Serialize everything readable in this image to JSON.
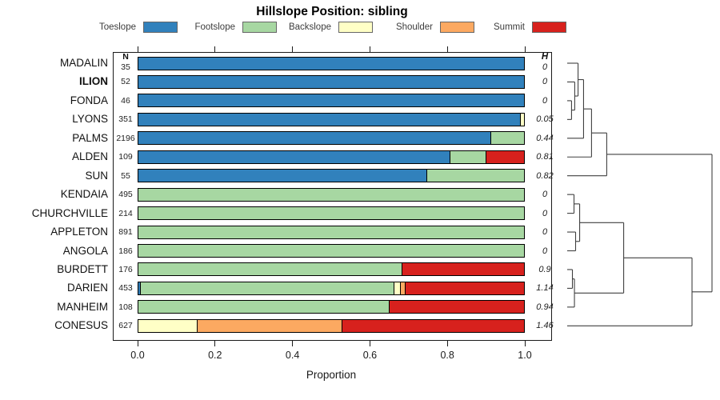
{
  "title": "Hillslope Position: sibling",
  "columns": {
    "n_header": "N",
    "h_header": "H"
  },
  "axis": {
    "xlabel": "Proportion",
    "xlim": [
      0,
      1
    ],
    "xticks": [
      "0.0",
      "0.2",
      "0.4",
      "0.6",
      "0.8",
      "1.0"
    ],
    "xtick_values": [
      0,
      0.2,
      0.4,
      0.6,
      0.8,
      1.0
    ]
  },
  "palette": {
    "toeslope": "#3181bc",
    "footslope": "#a7d7a2",
    "backslope": "#ffffc6",
    "shoulder": "#fca961",
    "summit": "#d7211d"
  },
  "legend": [
    {
      "label": "Toeslope",
      "key": "toeslope"
    },
    {
      "label": "Footslope",
      "key": "footslope"
    },
    {
      "label": "Backslope",
      "key": "backslope"
    },
    {
      "label": "Shoulder",
      "key": "shoulder"
    },
    {
      "label": "Summit",
      "key": "summit"
    }
  ],
  "chart_data": {
    "type": "bar",
    "variant": "stacked-horizontal-proportion",
    "title": "Hillslope Position: sibling",
    "xlabel": "Proportion",
    "xlim": [
      0,
      1
    ],
    "grid": false,
    "legend_position": "top",
    "rows": [
      {
        "name": "MADALIN",
        "bold": false,
        "n": "35",
        "h": "0",
        "segments": [
          {
            "class": "toeslope",
            "value": 1.0
          }
        ]
      },
      {
        "name": "ILION",
        "bold": true,
        "n": "52",
        "h": "0",
        "segments": [
          {
            "class": "toeslope",
            "value": 1.0
          }
        ]
      },
      {
        "name": "FONDA",
        "bold": false,
        "n": "46",
        "h": "0",
        "segments": [
          {
            "class": "toeslope",
            "value": 1.0
          }
        ]
      },
      {
        "name": "LYONS",
        "bold": false,
        "n": "351",
        "h": "0.05",
        "segments": [
          {
            "class": "toeslope",
            "value": 0.992
          },
          {
            "class": "backslope",
            "value": 0.008
          }
        ]
      },
      {
        "name": "PALMS",
        "bold": false,
        "n": "2196",
        "h": "0.44",
        "segments": [
          {
            "class": "toeslope",
            "value": 0.915
          },
          {
            "class": "footslope",
            "value": 0.085
          }
        ]
      },
      {
        "name": "ALDEN",
        "bold": false,
        "n": "109",
        "h": "0.81",
        "segments": [
          {
            "class": "toeslope",
            "value": 0.81
          },
          {
            "class": "footslope",
            "value": 0.093
          },
          {
            "class": "summit",
            "value": 0.097
          }
        ]
      },
      {
        "name": "SUN",
        "bold": false,
        "n": "55",
        "h": "0.82",
        "segments": [
          {
            "class": "toeslope",
            "value": 0.748
          },
          {
            "class": "footslope",
            "value": 0.252
          }
        ]
      },
      {
        "name": "KENDAIA",
        "bold": false,
        "n": "495",
        "h": "0",
        "segments": [
          {
            "class": "footslope",
            "value": 1.0
          }
        ]
      },
      {
        "name": "CHURCHVILLE",
        "bold": false,
        "n": "214",
        "h": "0",
        "segments": [
          {
            "class": "footslope",
            "value": 1.0
          }
        ]
      },
      {
        "name": "APPLETON",
        "bold": false,
        "n": "891",
        "h": "0",
        "segments": [
          {
            "class": "footslope",
            "value": 1.0
          }
        ]
      },
      {
        "name": "ANGOLA",
        "bold": false,
        "n": "186",
        "h": "0",
        "segments": [
          {
            "class": "footslope",
            "value": 1.0
          }
        ]
      },
      {
        "name": "BURDETT",
        "bold": false,
        "n": "176",
        "h": "0.9",
        "segments": [
          {
            "class": "footslope",
            "value": 0.684
          },
          {
            "class": "summit",
            "value": 0.316
          }
        ]
      },
      {
        "name": "DARIEN",
        "bold": false,
        "n": "453",
        "h": "1.14",
        "segments": [
          {
            "class": "toeslope",
            "value": 0.006
          },
          {
            "class": "footslope",
            "value": 0.658
          },
          {
            "class": "backslope",
            "value": 0.016
          },
          {
            "class": "shoulder",
            "value": 0.014
          },
          {
            "class": "summit",
            "value": 0.306
          }
        ]
      },
      {
        "name": "MANHEIM",
        "bold": false,
        "n": "108",
        "h": "0.94",
        "segments": [
          {
            "class": "footslope",
            "value": 0.651
          },
          {
            "class": "summit",
            "value": 0.349
          }
        ]
      },
      {
        "name": "CONESUS",
        "bold": false,
        "n": "627",
        "h": "1.46",
        "segments": [
          {
            "class": "backslope",
            "value": 0.153
          },
          {
            "class": "shoulder",
            "value": 0.377
          },
          {
            "class": "summit",
            "value": 0.47
          }
        ]
      }
    ],
    "dendrogram": {
      "orientation": "right-of-rows",
      "leaf_order": [
        "MADALIN",
        "ILION",
        "FONDA",
        "LYONS",
        "PALMS",
        "ALDEN",
        "SUN",
        "KENDAIA",
        "CHURCHVILLE",
        "APPLETON",
        "ANGOLA",
        "BURDETT",
        "DARIEN",
        "MANHEIM",
        "CONESUS"
      ],
      "merges": [
        [
          "FONDA",
          "LYONS",
          0.03
        ],
        [
          "ILION",
          "M0",
          0.052
        ],
        [
          "MADALIN",
          "M1",
          0.075
        ],
        [
          "M2",
          "PALMS",
          0.113
        ],
        [
          "M3",
          "ALDEN",
          0.168
        ],
        [
          "M4",
          "SUN",
          0.273
        ],
        [
          "KENDAIA",
          "CHURCHVILLE",
          0.047
        ],
        [
          "APPLETON",
          "ANGOLA",
          0.058
        ],
        [
          "M6",
          "M7",
          0.086
        ],
        [
          "BURDETT",
          "DARIEN",
          0.036
        ],
        [
          "M9",
          "MANHEIM",
          0.05
        ],
        [
          "M8",
          "M10",
          0.39
        ],
        [
          "M11",
          "CONESUS",
          0.862
        ],
        [
          "M5",
          "M12",
          1.0
        ]
      ]
    }
  }
}
